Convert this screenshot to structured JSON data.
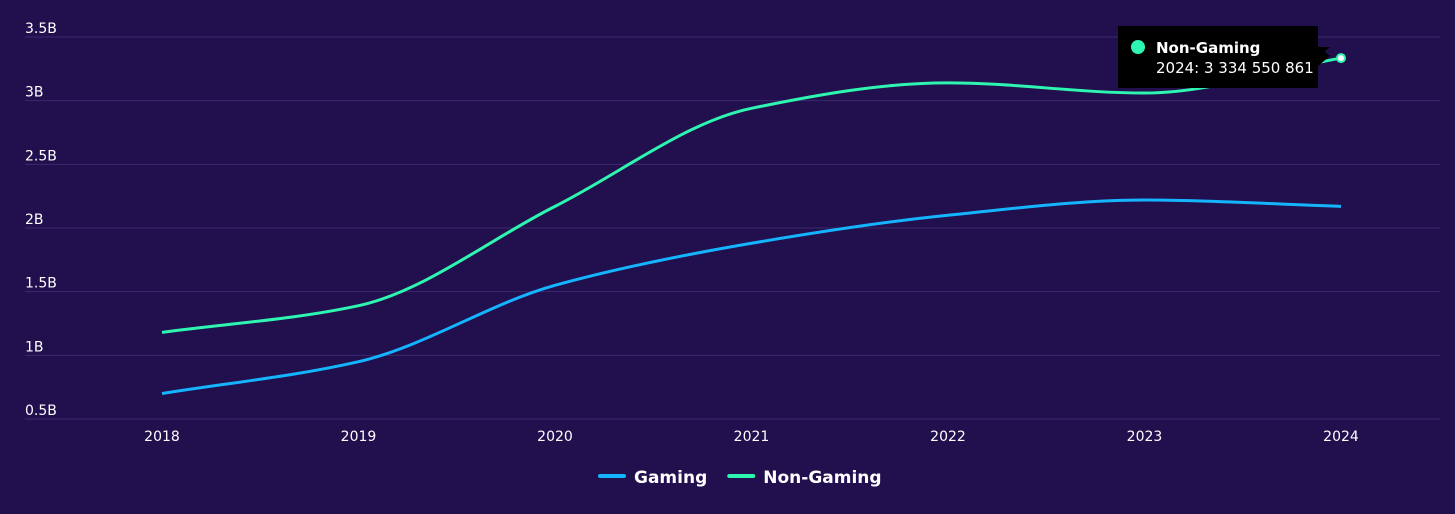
{
  "chart_data": {
    "type": "line",
    "categories": [
      "2018",
      "2019",
      "2020",
      "2021",
      "2022",
      "2023",
      "2024"
    ],
    "series": [
      {
        "name": "Gaming",
        "color": "#14b4ff",
        "values": [
          700000000,
          950000000,
          1550000000,
          1880000000,
          2100000000,
          2220000000,
          2170000000
        ]
      },
      {
        "name": "Non-Gaming",
        "color": "#2ef5b0",
        "values": [
          1180000000,
          1390000000,
          2170000000,
          2940000000,
          3140000000,
          3060000000,
          3334550861
        ]
      }
    ],
    "ylim": [
      500000000,
      3500000000
    ],
    "yticks": [
      {
        "value": 500000000,
        "label": "0.5B"
      },
      {
        "value": 1000000000,
        "label": "1B"
      },
      {
        "value": 1500000000,
        "label": "1.5B"
      },
      {
        "value": 2000000000,
        "label": "2B"
      },
      {
        "value": 2500000000,
        "label": "2.5B"
      },
      {
        "value": 3000000000,
        "label": "3B"
      },
      {
        "value": 3500000000,
        "label": "3.5B"
      }
    ],
    "grid": true,
    "legend": "bottom",
    "tooltip": "2024: 3 334 550 861"
  }
}
